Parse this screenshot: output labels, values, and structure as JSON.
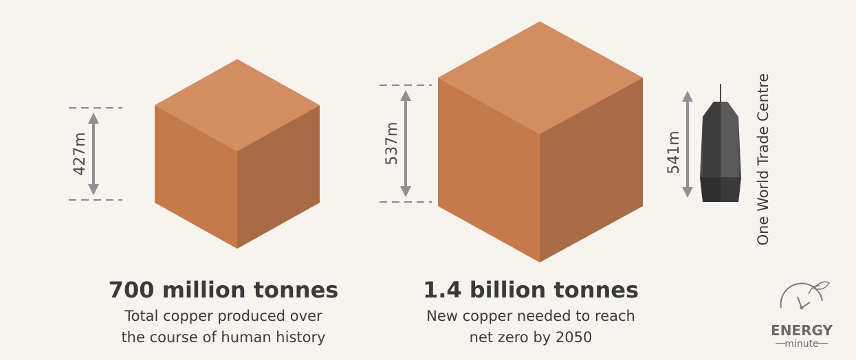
{
  "left_block": {
    "height_label": "427m",
    "title": "700 million tonnes",
    "desc_line1": "Total copper produced over",
    "desc_line2": "the course of human history"
  },
  "right_block": {
    "height_label": "537m",
    "title": "1.4 billion tonnes",
    "desc_line1": "New copper needed to reach",
    "desc_line2": "net zero by 2050"
  },
  "building": {
    "height_label": "541m",
    "name": "One World Trade Centre"
  },
  "brand": {
    "name": "ENERGY",
    "tagline": "minute"
  },
  "colors": {
    "cube_top": "#d38d62",
    "cube_left": "#c67a4c",
    "cube_right": "#a96b45",
    "arrow": "#909090",
    "building": "#4a4a4a"
  }
}
